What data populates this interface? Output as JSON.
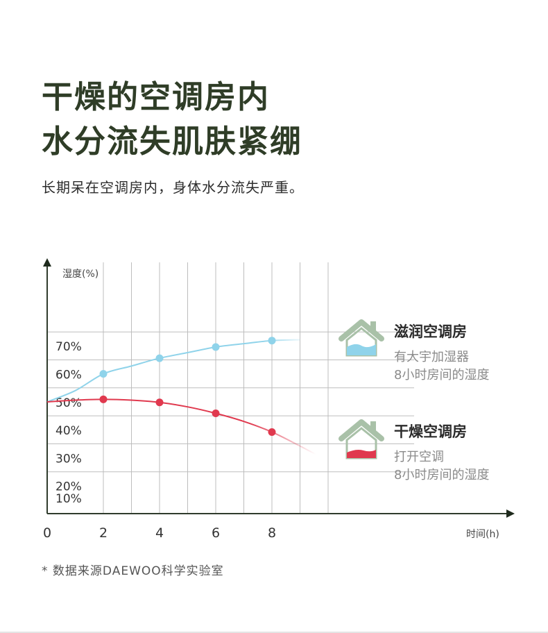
{
  "header": {
    "title_line1": "干燥的空调房内",
    "title_line2": "水分流失肌肤紧绷",
    "subtitle": "长期呆在空调房内，身体水分流失严重。"
  },
  "chart_data": {
    "type": "line",
    "ylabel": "湿度(%)",
    "xlabel": "时间(h)",
    "x_ticks": [
      "0",
      "2",
      "4",
      "6",
      "8"
    ],
    "y_ticks": [
      "10%",
      "20%",
      "30%",
      "40%",
      "50%",
      "60%",
      "70%"
    ],
    "xlim": [
      0,
      10
    ],
    "ylim": [
      5,
      80
    ],
    "grid": true,
    "series": [
      {
        "name": "滋润空调房",
        "color": "#8fd3ea",
        "curve_x": [
          0,
          1,
          2,
          3,
          4,
          5,
          6,
          7,
          8,
          9
        ],
        "curve_y": [
          45,
          49,
          55,
          57.8,
          60.6,
          62.6,
          64.6,
          65.8,
          66.9,
          67.2
        ],
        "points_x": [
          2,
          4,
          6,
          8
        ],
        "points_y": [
          55,
          60.6,
          64.6,
          66.9
        ]
      },
      {
        "name": "干燥空调房",
        "color": "#e0394e",
        "curve_x": [
          0,
          1,
          2,
          3,
          4,
          5,
          6,
          7,
          8,
          9,
          9.7
        ],
        "curve_y": [
          45,
          45.6,
          45.9,
          45.6,
          44.8,
          43.2,
          40.9,
          38,
          34.2,
          29.2,
          25.5
        ],
        "points_x": [
          2,
          4,
          6,
          8
        ],
        "points_y": [
          45.9,
          44.8,
          40.9,
          34.2
        ]
      }
    ]
  },
  "legend": [
    {
      "title": "滋润空调房",
      "line1": "有大宇加湿器",
      "line2": "8小时房间的湿度",
      "icon": "house-humidified-icon",
      "color": "#8fd3ea"
    },
    {
      "title": "干燥空调房",
      "line1": "打开空调",
      "line2": "8小时房间的湿度",
      "icon": "house-dry-icon",
      "color": "#e0394e"
    }
  ],
  "footnote": "* 数据来源DAEWOO科学实验室"
}
